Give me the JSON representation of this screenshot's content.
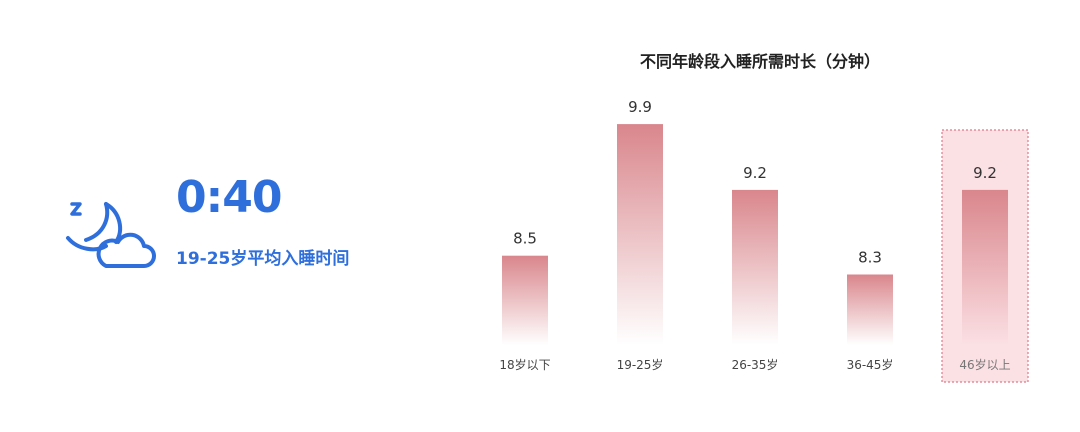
{
  "stat": {
    "value": "0:40",
    "label": "19-25岁平均入睡时间",
    "icon": "moon-cloud-sleep-icon",
    "color": "#2f6fdc"
  },
  "chart_data": {
    "type": "bar",
    "title": "不同年龄段入睡所需时长（分钟）",
    "categories": [
      "18岁以下",
      "19-25岁",
      "26-35岁",
      "36-45岁",
      "46岁以上"
    ],
    "values": [
      8.5,
      9.9,
      9.2,
      8.3,
      9.2
    ],
    "value_labels": [
      "8.5",
      "9.9",
      "9.2",
      "8.3",
      "9.2"
    ],
    "highlighted": "46岁以上",
    "bar_color": "#d9868c",
    "highlight_color": "#fbe0e4",
    "grid": false,
    "legend": "none"
  }
}
